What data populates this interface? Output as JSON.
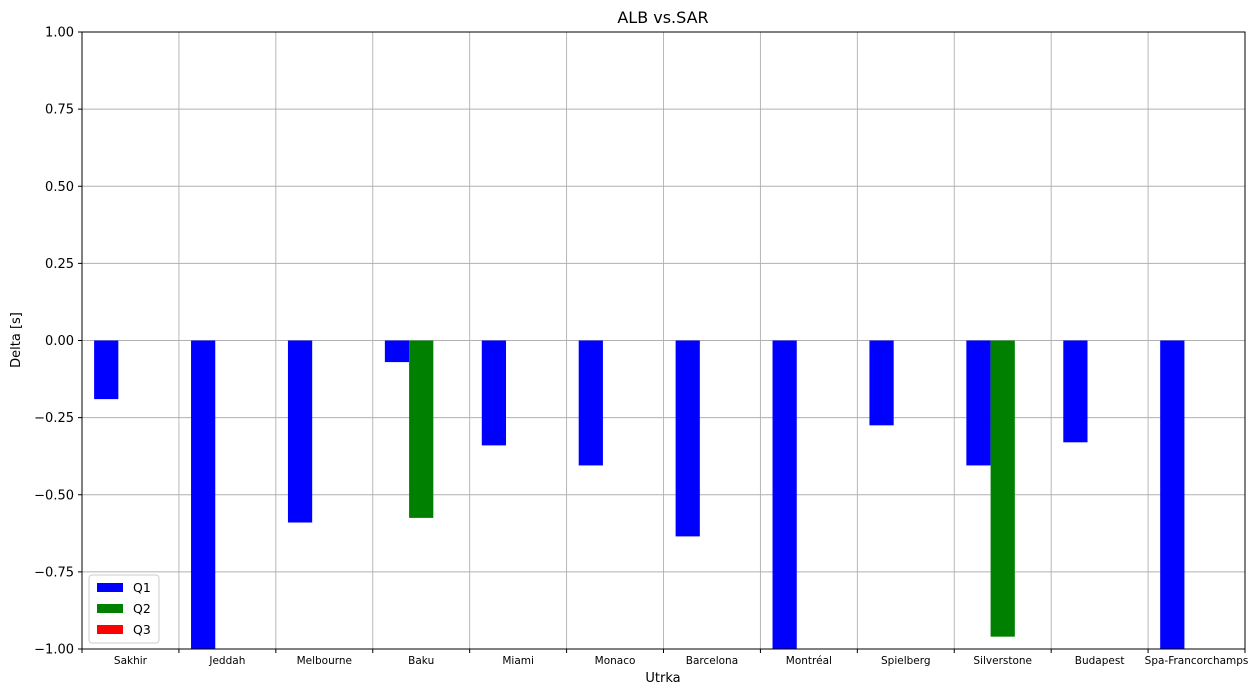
{
  "chart_data": {
    "type": "bar",
    "title": "ALB vs.SAR",
    "xlabel": "Utrka",
    "ylabel": "Delta [s]",
    "ylim": [
      -1.0,
      1.0
    ],
    "yticks": [
      "1.00",
      "0.75",
      "0.50",
      "0.25",
      "0.00",
      "−0.25",
      "−0.50",
      "−0.75",
      "−1.00"
    ],
    "ytick_values": [
      1.0,
      0.75,
      0.5,
      0.25,
      0.0,
      -0.25,
      -0.5,
      -0.75,
      -1.0
    ],
    "grid": true,
    "legend_position": "lower-left",
    "categories": [
      "Sakhir",
      "Jeddah",
      "Melbourne",
      "Baku",
      "Miami",
      "Monaco",
      "Barcelona",
      "Montréal",
      "Spielberg",
      "Silverstone",
      "Budapest",
      "Spa-Francorchamps"
    ],
    "series": [
      {
        "name": "Q1",
        "color": "#0000ff",
        "values": [
          -0.19,
          -1.0,
          -0.59,
          -0.07,
          -0.34,
          -0.405,
          -0.635,
          -1.0,
          -0.275,
          -0.405,
          -0.33,
          -1.0
        ]
      },
      {
        "name": "Q2",
        "color": "#008000",
        "values": [
          null,
          null,
          null,
          -0.575,
          null,
          null,
          null,
          null,
          null,
          -0.96,
          null,
          null
        ]
      },
      {
        "name": "Q3",
        "color": "#ff0000",
        "values": [
          null,
          null,
          null,
          null,
          null,
          null,
          null,
          null,
          null,
          null,
          null,
          null
        ]
      }
    ]
  }
}
